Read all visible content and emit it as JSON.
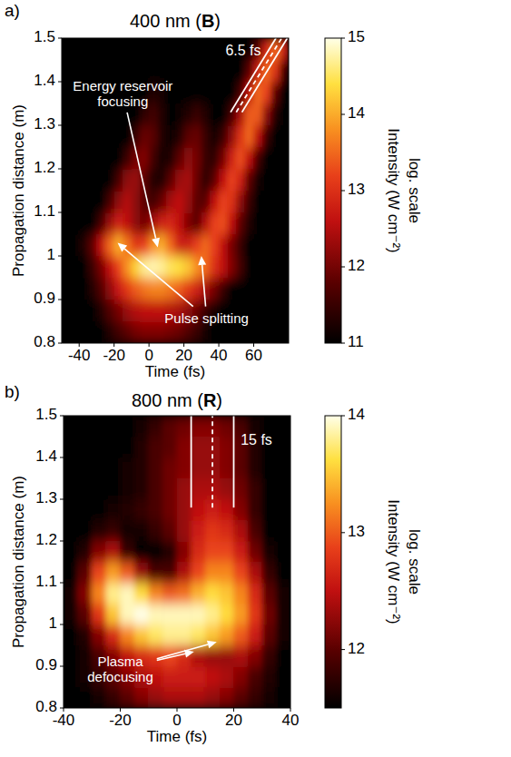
{
  "chart_data": [
    {
      "type": "heatmap",
      "panel_label": "a)",
      "title": "400 nm (B)",
      "x_label": "Time (fs)",
      "y_label": "Propagation distance (m)",
      "xlim": [
        -50,
        80
      ],
      "xticks": [
        -40,
        -20,
        0,
        20,
        40,
        60
      ],
      "ylim": [
        0.8,
        1.5
      ],
      "yticks": [
        0.8,
        0.9,
        1,
        1.1,
        1.2,
        1.3,
        1.4,
        1.5
      ],
      "x": [
        -47.5,
        -42.5,
        -37.5,
        -32.5,
        -27.5,
        -22.5,
        -17.5,
        -12.5,
        -7.5,
        -2.5,
        2.5,
        7.5,
        12.5,
        17.5,
        22.5,
        27.5,
        32.5,
        37.5,
        42.5,
        47.5,
        52.5,
        57.5,
        62.5,
        67.5,
        72.5,
        77.5
      ],
      "y": [
        0.825,
        0.875,
        0.925,
        0.975,
        1.025,
        1.075,
        1.125,
        1.175,
        1.225,
        1.275,
        1.325,
        1.375,
        1.425,
        1.475
      ],
      "cells": [
        [
          11,
          11,
          11,
          11,
          11,
          11.3,
          11.6,
          11.8,
          12,
          12.1,
          12.1,
          12.1,
          12,
          11.9,
          11.7,
          11.5,
          11.2,
          11,
          11,
          11,
          11,
          11,
          11,
          11,
          11,
          11
        ],
        [
          11,
          11,
          11,
          11,
          11.3,
          11.7,
          12,
          12.3,
          12.5,
          12.6,
          12.6,
          12.6,
          12.5,
          12.4,
          12.2,
          11.9,
          11.5,
          11.2,
          11,
          11,
          11,
          11,
          11,
          11,
          11,
          11
        ],
        [
          11,
          11,
          11,
          11.3,
          11.7,
          12.2,
          12.7,
          13.1,
          13.4,
          13.6,
          13.7,
          13.7,
          13.6,
          13.4,
          13.1,
          12.8,
          12.4,
          12,
          11.5,
          11,
          11,
          11,
          11,
          11,
          11,
          11
        ],
        [
          11,
          11,
          11,
          11.5,
          12,
          12.6,
          13.2,
          13.8,
          14.3,
          14.7,
          14.8,
          14.7,
          14.5,
          14.4,
          14.2,
          13.8,
          13.5,
          13,
          12.6,
          12.1,
          11.6,
          11,
          11,
          11,
          11,
          11
        ],
        [
          11,
          11,
          11.3,
          11.8,
          12.6,
          13.5,
          14,
          13.6,
          13.1,
          13.2,
          13.8,
          14,
          13.5,
          12.8,
          12.8,
          13.2,
          13.5,
          13.2,
          12.6,
          12,
          11.5,
          11,
          11,
          11,
          11,
          11
        ],
        [
          11,
          11,
          11,
          11,
          11.6,
          12.3,
          12.8,
          12.6,
          12.2,
          12,
          12.4,
          12.8,
          12.9,
          12.6,
          12.1,
          11.8,
          12.5,
          13.2,
          13.3,
          12.6,
          11.8,
          11.3,
          11,
          11,
          11,
          11
        ],
        [
          11,
          11,
          11,
          11,
          11,
          11.6,
          12.2,
          12.5,
          12.2,
          11.8,
          11.6,
          11.9,
          12.4,
          12.6,
          12.3,
          11.8,
          11.8,
          12.6,
          13.2,
          13,
          12.2,
          11.5,
          11,
          11,
          11,
          11
        ],
        [
          11,
          11,
          11,
          11,
          11,
          11,
          11.6,
          12.2,
          12.3,
          11.8,
          11.3,
          11.3,
          11.8,
          12.3,
          12.4,
          11.9,
          11.4,
          11.8,
          12.6,
          13.2,
          12.8,
          11.8,
          11.2,
          11,
          11,
          11
        ],
        [
          11,
          11,
          11,
          11,
          11,
          11,
          11,
          11.5,
          12,
          12.1,
          11.6,
          11.2,
          11.3,
          11.8,
          12.2,
          12,
          11.5,
          11.4,
          12,
          12.8,
          13.3,
          12.6,
          11.6,
          11,
          11,
          11
        ],
        [
          11,
          11,
          11,
          11,
          11,
          11,
          11,
          11,
          11.5,
          11.9,
          11.8,
          11.3,
          11.1,
          11.3,
          11.8,
          11.9,
          11.5,
          11.2,
          11.5,
          12.2,
          13,
          13.5,
          12.6,
          11.5,
          11,
          11
        ],
        [
          11,
          11,
          11,
          11,
          11,
          11,
          11,
          11,
          11,
          11.4,
          11.6,
          11.3,
          11,
          11.1,
          11.3,
          11.5,
          11.3,
          11,
          11,
          11.6,
          12.4,
          13.4,
          13.4,
          12.2,
          11.3,
          11
        ],
        [
          11,
          11,
          11,
          11,
          11,
          11,
          11,
          11,
          11,
          11,
          11.3,
          11.2,
          11,
          11,
          11,
          11,
          11,
          11,
          11,
          11,
          11.6,
          12.6,
          13.5,
          13.2,
          11.8,
          11
        ],
        [
          11,
          11,
          11,
          11,
          11,
          11,
          11,
          11,
          11,
          11,
          11,
          11,
          11,
          11,
          11,
          11,
          11,
          11,
          11,
          11,
          11,
          11.8,
          12.8,
          13.5,
          13,
          11.6
        ],
        [
          11,
          11,
          11,
          11,
          11,
          11,
          11,
          11,
          11,
          11,
          11,
          11,
          11,
          11,
          11,
          11,
          11,
          11,
          11,
          11,
          11,
          11,
          11.8,
          12.9,
          13.5,
          12.8
        ]
      ],
      "colorbar": {
        "label": "Intensity (W cm⁻²)",
        "sublabel": "log. scale",
        "range": [
          11,
          15
        ],
        "ticks": [
          11,
          12,
          13,
          14,
          15
        ]
      },
      "annotations": [
        {
          "text": "Energy reservoir focusing",
          "at": [
            -15,
            1.37
          ],
          "arrows": [
            [
              5,
              1.02
            ]
          ]
        },
        {
          "text": "Pulse splitting",
          "at": [
            33,
            0.855
          ],
          "arrows": [
            [
              -18,
              1.03
            ],
            [
              30,
              1.0
            ]
          ]
        }
      ],
      "duration": {
        "label": "6.5 fs",
        "width": 6.5,
        "from": [
          50,
          1.33
        ],
        "to": [
          76,
          1.5
        ],
        "label_at": [
          54,
          1.47
        ]
      }
    },
    {
      "type": "heatmap",
      "panel_label": "b)",
      "title": "800 nm (R)",
      "x_label": "Time (fs)",
      "y_label": "Propagation distance (m)",
      "xlim": [
        -40,
        40
      ],
      "xticks": [
        -40,
        -20,
        0,
        20,
        40
      ],
      "ylim": [
        0.8,
        1.5
      ],
      "yticks": [
        0.8,
        0.9,
        1,
        1.1,
        1.2,
        1.3,
        1.4,
        1.5
      ],
      "x": [
        -37.5,
        -32.5,
        -27.5,
        -22.5,
        -17.5,
        -12.5,
        -7.5,
        -2.5,
        2.5,
        7.5,
        12.5,
        17.5,
        22.5,
        27.5,
        32.5,
        37.5
      ],
      "y": [
        0.825,
        0.875,
        0.925,
        0.975,
        1.025,
        1.075,
        1.125,
        1.175,
        1.225,
        1.275,
        1.325,
        1.375,
        1.425,
        1.475
      ],
      "cells": [
        [
          11.5,
          11.5,
          11.6,
          11.8,
          12,
          12.2,
          12.3,
          12.4,
          12.4,
          12.4,
          12.3,
          12.2,
          12,
          11.8,
          11.6,
          11.5
        ],
        [
          11.5,
          11.6,
          11.8,
          12,
          12.2,
          12.4,
          12.5,
          12.6,
          12.6,
          12.6,
          12.5,
          12.4,
          12.2,
          11.9,
          11.7,
          11.5
        ],
        [
          11.5,
          11.6,
          11.9,
          12.2,
          12.5,
          12.7,
          12.8,
          12.9,
          12.7,
          12.4,
          12.3,
          12.3,
          12.4,
          12.2,
          11.8,
          11.5
        ],
        [
          11.5,
          11.7,
          12.2,
          12.7,
          13.2,
          13.5,
          13.7,
          13.8,
          13.8,
          13.7,
          13.5,
          13.3,
          13,
          12.6,
          12,
          11.6
        ],
        [
          11.6,
          12,
          12.8,
          13.5,
          13.9,
          14,
          13.9,
          13.9,
          13.9,
          13.9,
          13.8,
          13.6,
          13.3,
          12.8,
          12.1,
          11.6
        ],
        [
          11.6,
          12.2,
          13.2,
          13.8,
          13.9,
          13.6,
          13.2,
          13,
          13.1,
          13.4,
          13.6,
          13.5,
          13.2,
          12.7,
          12,
          11.6
        ],
        [
          11.5,
          12,
          12.9,
          13.3,
          13,
          12.3,
          11.9,
          11.9,
          12.4,
          12.9,
          13.2,
          13.2,
          12.9,
          12.4,
          11.8,
          11.5
        ],
        [
          11.5,
          11.7,
          12.2,
          12.4,
          11.8,
          11.5,
          11.5,
          11.7,
          12.2,
          12.7,
          12.9,
          12.9,
          12.6,
          12.1,
          11.6,
          11.5
        ],
        [
          11.5,
          11.5,
          11.7,
          11.8,
          11.6,
          11.6,
          11.8,
          12,
          12.3,
          12.6,
          12.8,
          12.7,
          12.4,
          11.9,
          11.5,
          11.5
        ],
        [
          11.5,
          11.5,
          11.5,
          11.6,
          11.7,
          11.8,
          11.9,
          12.1,
          12.3,
          12.5,
          12.6,
          12.5,
          12.2,
          11.8,
          11.5,
          11.5
        ],
        [
          11.5,
          11.5,
          11.5,
          11.5,
          11.6,
          11.7,
          11.9,
          12.1,
          12.3,
          12.4,
          12.4,
          12.3,
          12.1,
          11.8,
          11.5,
          11.5
        ],
        [
          11.5,
          11.5,
          11.5,
          11.5,
          11.6,
          11.7,
          11.9,
          12.1,
          12.2,
          12.3,
          12.3,
          12.2,
          12,
          11.7,
          11.5,
          11.5
        ],
        [
          11.5,
          11.5,
          11.5,
          11.5,
          11.5,
          11.7,
          11.9,
          12,
          12.2,
          12.3,
          12.3,
          12.2,
          12,
          11.7,
          11.5,
          11.5
        ],
        [
          11.5,
          11.5,
          11.5,
          11.5,
          11.5,
          11.6,
          11.8,
          12,
          12.1,
          12.2,
          12.2,
          12.1,
          11.9,
          11.6,
          11.5,
          11.5
        ]
      ],
      "colorbar": {
        "label": "Intensity (W cm⁻²)",
        "sublabel": "log. scale",
        "range": [
          11.5,
          14
        ],
        "ticks": [
          12,
          13,
          14
        ]
      },
      "annotations": [
        {
          "text": "Plasma defocusing",
          "at": [
            -20,
            0.89
          ],
          "arrows": [
            [
              6,
              0.935
            ],
            [
              14,
              0.958
            ]
          ]
        }
      ],
      "duration": {
        "label": "15 fs",
        "width": 15,
        "from": [
          12.5,
          1.28
        ],
        "to": [
          12.5,
          1.5
        ],
        "label_at": [
          28,
          1.44
        ]
      }
    }
  ]
}
